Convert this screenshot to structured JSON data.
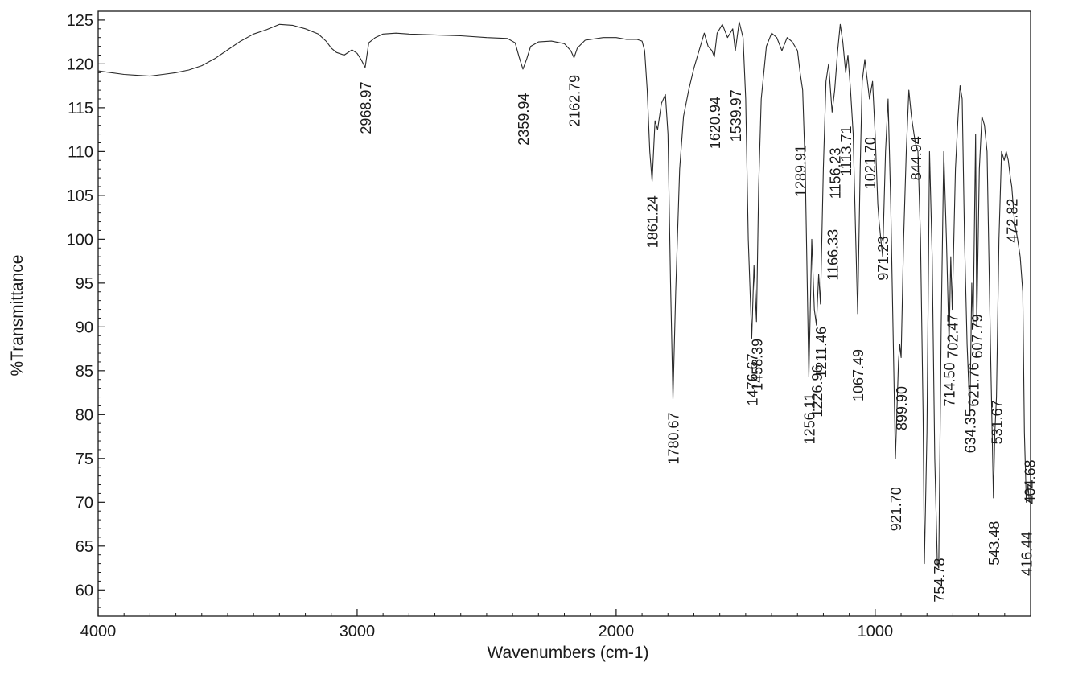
{
  "chart_data": {
    "type": "line",
    "xlabel": "Wavenumbers (cm-1)",
    "ylabel": "%Transmittance",
    "xlim": [
      4000,
      400
    ],
    "ylim": [
      57,
      126
    ],
    "x_reversed": true,
    "x_ticks": [
      4000,
      3000,
      2000,
      1000
    ],
    "y_ticks": [
      60,
      65,
      70,
      75,
      80,
      85,
      90,
      95,
      100,
      105,
      110,
      115,
      120,
      125
    ],
    "grid": false,
    "line_color": "#2a2a2a",
    "series": [
      {
        "points": [
          [
            4000,
            119.2
          ],
          [
            3950,
            119.0
          ],
          [
            3900,
            118.8
          ],
          [
            3850,
            118.7
          ],
          [
            3800,
            118.6
          ],
          [
            3750,
            118.8
          ],
          [
            3700,
            119.0
          ],
          [
            3650,
            119.3
          ],
          [
            3600,
            119.8
          ],
          [
            3550,
            120.6
          ],
          [
            3500,
            121.6
          ],
          [
            3450,
            122.6
          ],
          [
            3400,
            123.4
          ],
          [
            3350,
            123.9
          ],
          [
            3300,
            124.5
          ],
          [
            3250,
            124.4
          ],
          [
            3200,
            124.0
          ],
          [
            3150,
            123.4
          ],
          [
            3120,
            122.6
          ],
          [
            3100,
            121.8
          ],
          [
            3080,
            121.3
          ],
          [
            3050,
            121.0
          ],
          [
            3020,
            121.6
          ],
          [
            3000,
            121.2
          ],
          [
            2985,
            120.5
          ],
          [
            2968.97,
            119.6
          ],
          [
            2955,
            122.4
          ],
          [
            2930,
            123.0
          ],
          [
            2900,
            123.4
          ],
          [
            2850,
            123.5
          ],
          [
            2800,
            123.4
          ],
          [
            2700,
            123.3
          ],
          [
            2600,
            123.2
          ],
          [
            2500,
            123.0
          ],
          [
            2420,
            122.9
          ],
          [
            2390,
            122.4
          ],
          [
            2375,
            120.8
          ],
          [
            2359.94,
            119.4
          ],
          [
            2345,
            120.6
          ],
          [
            2330,
            122.0
          ],
          [
            2300,
            122.5
          ],
          [
            2250,
            122.6
          ],
          [
            2200,
            122.3
          ],
          [
            2175,
            121.5
          ],
          [
            2162.79,
            120.7
          ],
          [
            2150,
            121.8
          ],
          [
            2120,
            122.7
          ],
          [
            2050,
            123.0
          ],
          [
            2000,
            123.0
          ],
          [
            1960,
            122.8
          ],
          [
            1920,
            122.8
          ],
          [
            1900,
            122.6
          ],
          [
            1890,
            121.5
          ],
          [
            1880,
            117.0
          ],
          [
            1870,
            110.0
          ],
          [
            1861.24,
            106.6
          ],
          [
            1850,
            113.5
          ],
          [
            1840,
            112.5
          ],
          [
            1825,
            115.5
          ],
          [
            1810,
            116.5
          ],
          [
            1800,
            112.0
          ],
          [
            1790,
            95.0
          ],
          [
            1780.67,
            81.8
          ],
          [
            1770,
            94.0
          ],
          [
            1755,
            108.0
          ],
          [
            1740,
            114.0
          ],
          [
            1720,
            117.0
          ],
          [
            1700,
            119.5
          ],
          [
            1680,
            121.5
          ],
          [
            1660,
            123.5
          ],
          [
            1645,
            122.0
          ],
          [
            1630,
            121.5
          ],
          [
            1620.94,
            120.8
          ],
          [
            1610,
            123.5
          ],
          [
            1590,
            124.5
          ],
          [
            1570,
            123.0
          ],
          [
            1550,
            124.0
          ],
          [
            1539.97,
            121.5
          ],
          [
            1525,
            124.8
          ],
          [
            1510,
            123.0
          ],
          [
            1500,
            116.0
          ],
          [
            1490,
            100.0
          ],
          [
            1476.67,
            88.7
          ],
          [
            1468,
            97.0
          ],
          [
            1458.39,
            90.6
          ],
          [
            1450,
            106.0
          ],
          [
            1440,
            116.0
          ],
          [
            1420,
            122.0
          ],
          [
            1400,
            123.5
          ],
          [
            1380,
            123.0
          ],
          [
            1360,
            121.5
          ],
          [
            1340,
            123.0
          ],
          [
            1320,
            122.5
          ],
          [
            1300,
            121.5
          ],
          [
            1289.91,
            119.0
          ],
          [
            1280,
            117.0
          ],
          [
            1270,
            108.0
          ],
          [
            1256.11,
            84.3
          ],
          [
            1245,
            100.0
          ],
          [
            1235,
            92.0
          ],
          [
            1226.96,
            90.2
          ],
          [
            1218,
            96.0
          ],
          [
            1211.46,
            92.6
          ],
          [
            1200,
            108.0
          ],
          [
            1190,
            118.0
          ],
          [
            1180,
            120.0
          ],
          [
            1166.33,
            114.5
          ],
          [
            1156.23,
            117.0
          ],
          [
            1145,
            121.5
          ],
          [
            1135,
            124.5
          ],
          [
            1125,
            122.5
          ],
          [
            1113.71,
            119.0
          ],
          [
            1105,
            121.0
          ],
          [
            1095,
            117.0
          ],
          [
            1085,
            112.0
          ],
          [
            1075,
            100.0
          ],
          [
            1067.49,
            91.5
          ],
          [
            1058,
            108.0
          ],
          [
            1050,
            118.0
          ],
          [
            1040,
            120.5
          ],
          [
            1030,
            118.0
          ],
          [
            1021.7,
            116.0
          ],
          [
            1010,
            118.0
          ],
          [
            1000,
            112.0
          ],
          [
            990,
            104.0
          ],
          [
            985,
            102.0
          ],
          [
            978,
            100.0
          ],
          [
            971.23,
            98.0
          ],
          [
            960,
            110.0
          ],
          [
            950,
            116.0
          ],
          [
            940,
            104.0
          ],
          [
            930,
            88.0
          ],
          [
            921.7,
            75.0
          ],
          [
            910,
            86.0
          ],
          [
            905,
            88.0
          ],
          [
            899.9,
            86.5
          ],
          [
            890,
            100.0
          ],
          [
            880,
            110.0
          ],
          [
            870,
            117.0
          ],
          [
            860,
            114.0
          ],
          [
            850,
            112.0
          ],
          [
            844.94,
            111.0
          ],
          [
            835,
            110.0
          ],
          [
            825,
            100.0
          ],
          [
            815,
            80.0
          ],
          [
            810,
            63.0
          ],
          [
            800,
            78.0
          ],
          [
            790,
            110.0
          ],
          [
            780,
            98.0
          ],
          [
            770,
            75.0
          ],
          [
            760,
            63.0
          ],
          [
            754.78,
            62.5
          ],
          [
            745,
            90.0
          ],
          [
            735,
            110.0
          ],
          [
            725,
            100.0
          ],
          [
            714.5,
            88.0
          ],
          [
            708,
            98.0
          ],
          [
            702.47,
            92.0
          ],
          [
            690,
            108.0
          ],
          [
            680,
            114.0
          ],
          [
            672,
            117.5
          ],
          [
            664,
            116.0
          ],
          [
            655,
            100.0
          ],
          [
            645,
            88.0
          ],
          [
            634.35,
            80.0
          ],
          [
            627,
            95.0
          ],
          [
            621.76,
            90.0
          ],
          [
            612,
            112.0
          ],
          [
            607.79,
            90.0
          ],
          [
            598,
            108.0
          ],
          [
            588,
            114.0
          ],
          [
            578,
            113.0
          ],
          [
            568,
            110.0
          ],
          [
            555,
            88.0
          ],
          [
            543.48,
            70.5
          ],
          [
            538,
            78.0
          ],
          [
            531.67,
            82.0
          ],
          [
            522,
            100.0
          ],
          [
            512,
            110.0
          ],
          [
            502,
            109.0
          ],
          [
            494,
            110.0
          ],
          [
            486,
            109.0
          ],
          [
            478,
            107.0
          ],
          [
            472.82,
            106.0
          ],
          [
            462,
            102.0
          ],
          [
            450,
            100.0
          ],
          [
            440,
            98.0
          ],
          [
            430,
            94.0
          ],
          [
            424,
            78.0
          ],
          [
            416.44,
            70.0
          ],
          [
            410,
            72.0
          ],
          [
            404.68,
            70.0
          ]
        ]
      }
    ],
    "annotations": [
      {
        "text": "2968.97",
        "x": 2968.97,
        "anchor_y": 112.0
      },
      {
        "text": "2359.94",
        "x": 2359.94,
        "anchor_y": 110.7
      },
      {
        "text": "2162.79",
        "x": 2162.79,
        "anchor_y": 112.8
      },
      {
        "text": "1861.24",
        "x": 1861.24,
        "anchor_y": 99.0
      },
      {
        "text": "1780.67",
        "x": 1780.67,
        "anchor_y": 74.3
      },
      {
        "text": "1620.94",
        "x": 1620.94,
        "anchor_y": 110.3
      },
      {
        "text": "1539.97",
        "x": 1539.97,
        "anchor_y": 111.1
      },
      {
        "text": "1476.67",
        "x": 1476.67,
        "anchor_y": 81.0
      },
      {
        "text": "1458.39",
        "x": 1458.39,
        "anchor_y": 82.7
      },
      {
        "text": "1289.91",
        "x": 1289.91,
        "anchor_y": 104.8
      },
      {
        "text": "1256.11",
        "x": 1256.11,
        "anchor_y": 76.6
      },
      {
        "text": "1226.96",
        "x": 1226.96,
        "anchor_y": 79.7
      },
      {
        "text": "1211.46",
        "x": 1211.46,
        "anchor_y": 84.2
      },
      {
        "text": "1166.33",
        "x": 1166.33,
        "anchor_y": 95.3
      },
      {
        "text": "1156.23",
        "x": 1156.23,
        "anchor_y": 104.6
      },
      {
        "text": "1113.71",
        "x": 1113.71,
        "anchor_y": 107.2
      },
      {
        "text": "1067.49",
        "x": 1067.49,
        "anchor_y": 81.5
      },
      {
        "text": "1021.70",
        "x": 1021.7,
        "anchor_y": 105.7
      },
      {
        "text": "971.23",
        "x": 971.23,
        "anchor_y": 95.3
      },
      {
        "text": "921.70",
        "x": 921.7,
        "anchor_y": 66.7
      },
      {
        "text": "899.90",
        "x": 899.9,
        "anchor_y": 78.2
      },
      {
        "text": "844.94",
        "x": 844.94,
        "anchor_y": 106.7
      },
      {
        "text": "754.78",
        "x": 754.78,
        "anchor_y": 58.6
      },
      {
        "text": "714.50",
        "x": 714.5,
        "anchor_y": 80.9
      },
      {
        "text": "702.47",
        "x": 702.47,
        "anchor_y": 86.4
      },
      {
        "text": "634.35",
        "x": 634.35,
        "anchor_y": 75.6
      },
      {
        "text": "621.76",
        "x": 621.76,
        "anchor_y": 80.9
      },
      {
        "text": "607.79",
        "x": 607.79,
        "anchor_y": 86.4
      },
      {
        "text": "531.67",
        "x": 531.67,
        "anchor_y": 76.6
      },
      {
        "text": "543.48",
        "x": 543.48,
        "anchor_y": 62.8
      },
      {
        "text": "472.82",
        "x": 472.82,
        "anchor_y": 99.6
      },
      {
        "text": "416.44",
        "x": 416.44,
        "anchor_y": 61.6
      },
      {
        "text": "404.68",
        "x": 404.68,
        "anchor_y": 69.8
      }
    ]
  }
}
